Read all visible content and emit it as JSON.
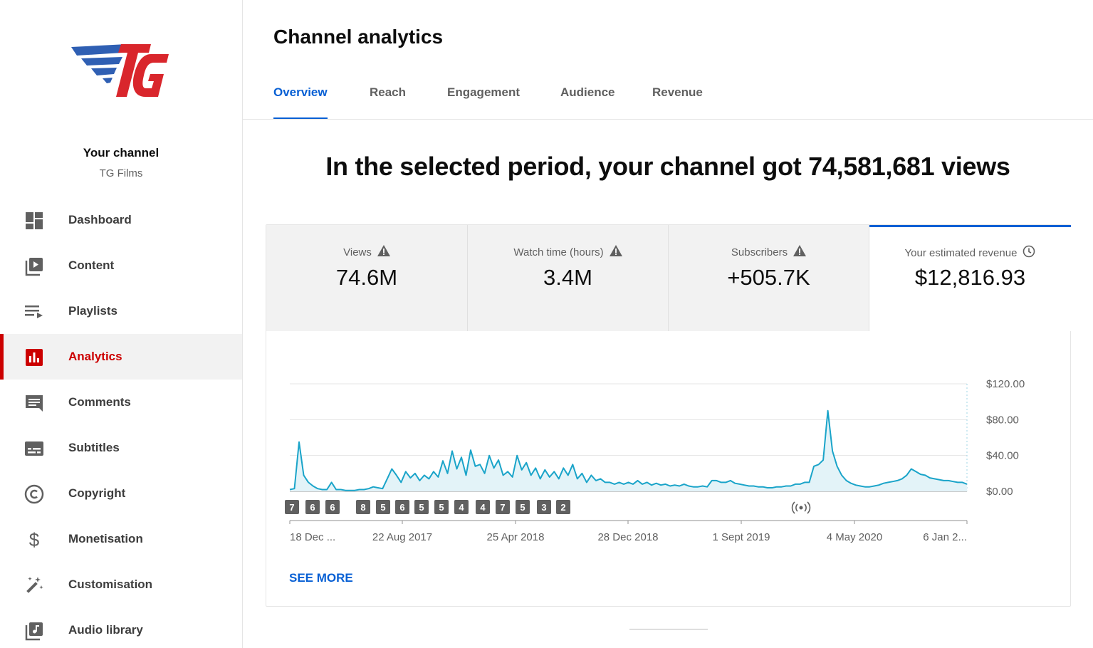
{
  "sidebar": {
    "channel_title": "Your channel",
    "channel_name": "TG Films",
    "items": [
      {
        "label": "Dashboard",
        "icon": "dashboard-icon"
      },
      {
        "label": "Content",
        "icon": "content-icon"
      },
      {
        "label": "Playlists",
        "icon": "playlists-icon"
      },
      {
        "label": "Analytics",
        "icon": "analytics-icon",
        "active": true
      },
      {
        "label": "Comments",
        "icon": "comments-icon"
      },
      {
        "label": "Subtitles",
        "icon": "subtitles-icon"
      },
      {
        "label": "Copyright",
        "icon": "copyright-icon"
      },
      {
        "label": "Monetisation",
        "icon": "monetisation-icon"
      },
      {
        "label": "Customisation",
        "icon": "customisation-icon"
      },
      {
        "label": "Audio library",
        "icon": "audio-library-icon"
      }
    ]
  },
  "header": {
    "title": "Channel analytics",
    "tabs": [
      "Overview",
      "Reach",
      "Engagement",
      "Audience",
      "Revenue"
    ],
    "active_tab": "Overview"
  },
  "headline": "In the selected period, your channel got 74,581,681 views",
  "metrics": [
    {
      "label": "Views",
      "value": "74.6M",
      "icon": "warning-icon"
    },
    {
      "label": "Watch time (hours)",
      "value": "3.4M",
      "icon": "warning-icon"
    },
    {
      "label": "Subscribers",
      "value": "+505.7K",
      "icon": "warning-icon"
    },
    {
      "label": "Your estimated revenue",
      "value": "$12,816.93",
      "icon": "clock-icon",
      "active": true
    }
  ],
  "see_more": "SEE MORE",
  "colors": {
    "accent": "#065fd4",
    "brand_red": "#cc0000",
    "line": "#1aa4c9"
  },
  "chart_data": {
    "type": "area",
    "y_ticks": [
      "$120.00",
      "$80.00",
      "$40.00",
      "$0.00"
    ],
    "ylim": [
      0,
      120
    ],
    "x_tick_labels": [
      "18 Dec ...",
      "22 Aug 2017",
      "25 Apr 2018",
      "28 Dec 2018",
      "1 Sept 2019",
      "4 May 2020",
      "6 Jan 2..."
    ],
    "markers": [
      "7",
      "6",
      "6",
      "8",
      "5",
      "6",
      "5",
      "5",
      "4",
      "4",
      "7",
      "5",
      "3",
      "2"
    ],
    "live_marker_icon": "live-broadcast-icon",
    "series": [
      {
        "values": [
          2,
          3,
          55,
          18,
          10,
          6,
          3,
          2,
          2,
          10,
          2,
          2,
          1,
          1,
          1,
          2,
          2,
          3,
          5,
          4,
          3,
          14,
          25,
          18,
          10,
          22,
          15,
          20,
          12,
          18,
          14,
          22,
          16,
          34,
          20,
          45,
          25,
          38,
          18,
          46,
          28,
          30,
          20,
          40,
          26,
          35,
          18,
          22,
          16,
          40,
          24,
          32,
          18,
          26,
          14,
          24,
          16,
          22,
          14,
          26,
          18,
          30,
          14,
          20,
          10,
          18,
          12,
          14,
          10,
          10,
          8,
          10,
          8,
          10,
          8,
          12,
          8,
          10,
          7,
          9,
          7,
          8,
          6,
          7,
          6,
          8,
          6,
          5,
          5,
          6,
          5,
          12,
          12,
          10,
          10,
          12,
          9,
          8,
          7,
          6,
          6,
          5,
          5,
          4,
          4,
          5,
          5,
          6,
          6,
          8,
          8,
          10,
          10,
          28,
          30,
          35,
          90,
          45,
          28,
          18,
          12,
          9,
          7,
          6,
          5,
          5,
          6,
          7,
          9,
          10,
          11,
          12,
          14,
          18,
          25,
          22,
          19,
          18,
          15,
          14,
          13,
          12,
          12,
          11,
          10,
          10,
          8
        ]
      }
    ]
  }
}
